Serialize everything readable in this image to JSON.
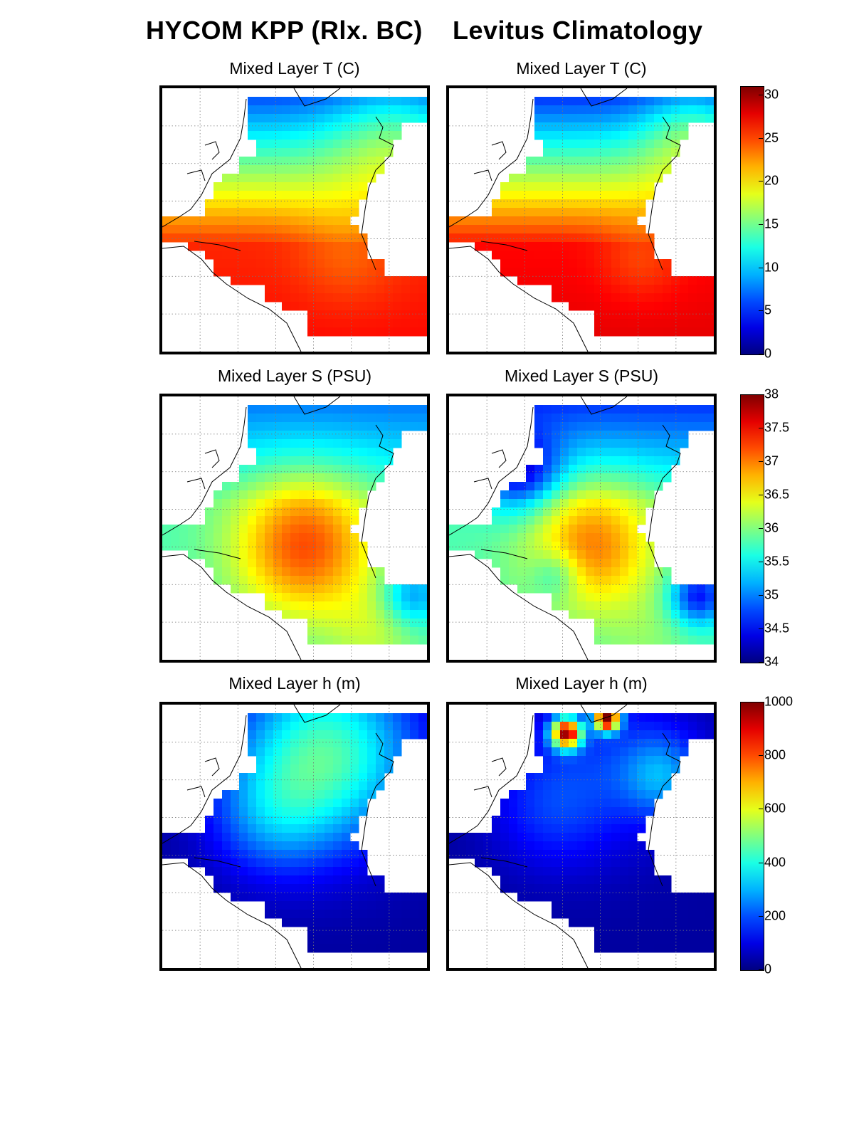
{
  "headings": {
    "left": "HYCOM KPP (Rlx. BC)",
    "right": "Levitus Climatology"
  },
  "chart_data": [
    {
      "type": "heatmap",
      "column": "HYCOM KPP (Rlx. BC)",
      "title": "Mixed Layer T (C)",
      "colorbar": "temp",
      "vmin": 0,
      "vmax": 31,
      "summary": {
        "north": 5,
        "mid": 16,
        "tropics": 26,
        "south": 27
      }
    },
    {
      "type": "heatmap",
      "column": "Levitus Climatology",
      "title": "Mixed Layer T (C)",
      "colorbar": "temp",
      "vmin": 0,
      "vmax": 31,
      "summary": {
        "north": 4,
        "mid": 17,
        "tropics": 27,
        "south": 28
      }
    },
    {
      "type": "heatmap",
      "column": "HYCOM KPP (Rlx. BC)",
      "title": "Mixed Layer S (PSU)",
      "colorbar": "salt",
      "vmin": 34,
      "vmax": 38,
      "summary": {
        "north": 34.9,
        "mid": 35.8,
        "subtropical_max": 37.2,
        "south": 36.2
      }
    },
    {
      "type": "heatmap",
      "column": "Levitus Climatology",
      "title": "Mixed Layer S (PSU)",
      "colorbar": "salt",
      "vmin": 34,
      "vmax": 38,
      "summary": {
        "north": 34.6,
        "mid": 35.8,
        "subtropical_max": 37.0,
        "south": 36.0
      }
    },
    {
      "type": "heatmap",
      "column": "HYCOM KPP (Rlx. BC)",
      "title": "Mixed Layer h (m)",
      "colorbar": "mld",
      "vmin": 0,
      "vmax": 1000,
      "summary": {
        "subpolar": 450,
        "mid": 150,
        "tropics": 40,
        "south": 30
      }
    },
    {
      "type": "heatmap",
      "column": "Levitus Climatology",
      "title": "Mixed Layer h (m)",
      "colorbar": "mld",
      "vmin": 0,
      "vmax": 1000,
      "summary": {
        "subpolar": 300,
        "labrador_max": 850,
        "greenland_max": 950,
        "mid": 100,
        "tropics": 30,
        "south": 30
      }
    }
  ],
  "colorbars": {
    "temp": {
      "vmin": 0,
      "vmax": 31,
      "ticks": [
        "30",
        "25",
        "20",
        "15",
        "10",
        "5",
        "0"
      ],
      "tick_values": [
        30,
        25,
        20,
        15,
        10,
        5,
        0
      ]
    },
    "salt": {
      "vmin": 34,
      "vmax": 38,
      "ticks": [
        "38",
        "37.5",
        "37",
        "36.5",
        "36",
        "35.5",
        "35",
        "34.5",
        "34"
      ],
      "tick_values": [
        38,
        37.5,
        37,
        36.5,
        36,
        35.5,
        35,
        34.5,
        34
      ]
    },
    "mld": {
      "vmin": 0,
      "vmax": 1000,
      "ticks": [
        "1000",
        "800",
        "600",
        "400",
        "200",
        "0"
      ],
      "tick_values": [
        1000,
        800,
        600,
        400,
        200,
        0
      ]
    }
  },
  "colormap": "jet"
}
